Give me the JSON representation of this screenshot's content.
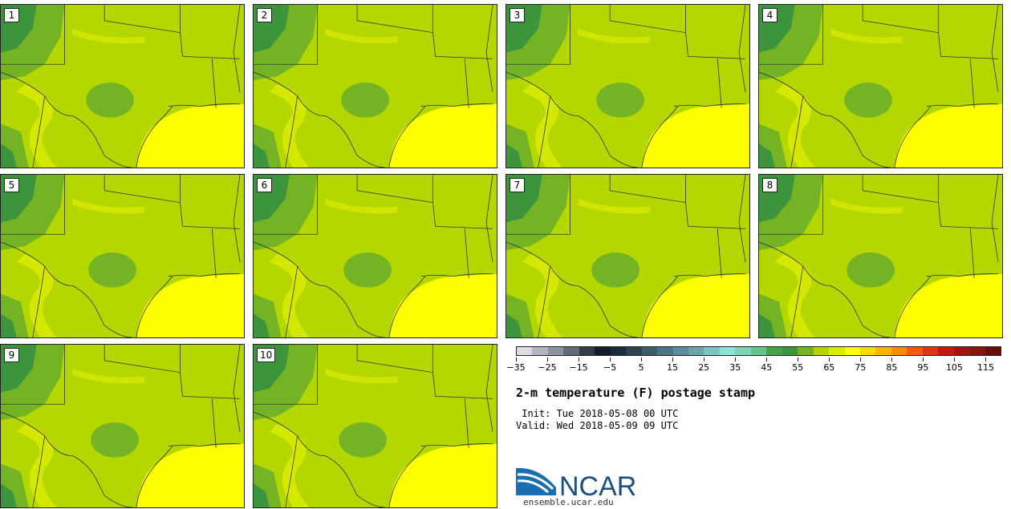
{
  "panels": [
    {
      "label": "1"
    },
    {
      "label": "2"
    },
    {
      "label": "3"
    },
    {
      "label": "4"
    },
    {
      "label": "5"
    },
    {
      "label": "6"
    },
    {
      "label": "7"
    },
    {
      "label": "8"
    },
    {
      "label": "9"
    },
    {
      "label": "10"
    }
  ],
  "colorbar": {
    "colors": [
      "#dcdce4",
      "#b4b4bc",
      "#8c94a4",
      "#646c7c",
      "#343c4c",
      "#141c2c",
      "#1c2c3c",
      "#2c4454",
      "#3c5c6c",
      "#4c7484",
      "#5c8c9c",
      "#6ca4ac",
      "#7cc4c4",
      "#8ce4d4",
      "#7cd4b4",
      "#64c48c",
      "#44a44c",
      "#3c943c",
      "#74b424",
      "#b4d400",
      "#dcec00",
      "#ffff00",
      "#ffd800",
      "#ffb400",
      "#ff8c00",
      "#f45c0c",
      "#e43414",
      "#c41c0c",
      "#a41410",
      "#84140c",
      "#64100c"
    ],
    "tick_labels": [
      "-35",
      "-25",
      "-15",
      "-5",
      "5",
      "15",
      "25",
      "35",
      "45",
      "55",
      "65",
      "75",
      "85",
      "95",
      "105",
      "115"
    ]
  },
  "title": "2-m temperature (F) postage stamp",
  "init_line": " Init: Tue 2018-05-08 00 UTC",
  "valid_line": "Valid: Wed 2018-05-09 09 UTC",
  "logo": {
    "text": "NCAR",
    "website": "ensemble.ucar.edu"
  },
  "map_colors": {
    "base": "#b5d700",
    "gulf": "#ffff00",
    "warm": "#dcec00",
    "cool": "#74b424",
    "cold": "#3c943c",
    "boundary": "#333333"
  }
}
